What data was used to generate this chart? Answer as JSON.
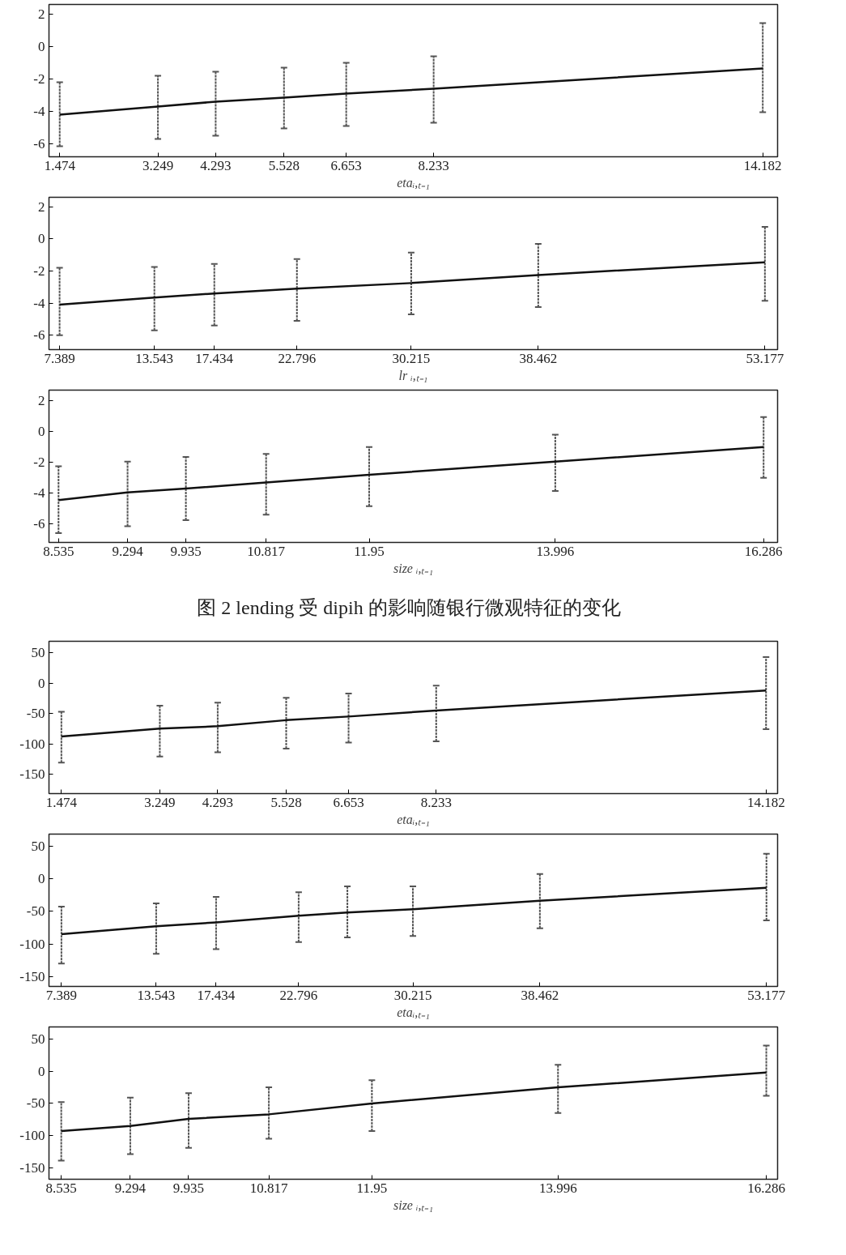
{
  "chart_data": [
    {
      "type": "line",
      "xlabel": "etaᵢ,ₜ₋₁",
      "x": [
        1.474,
        3.249,
        4.293,
        5.528,
        6.653,
        8.233,
        14.182
      ],
      "values": [
        -4.2,
        -3.7,
        -3.4,
        -3.15,
        -2.9,
        -2.6,
        -1.35
      ],
      "errors": [
        [
          -6.15,
          -2.2
        ],
        [
          -5.7,
          -1.8
        ],
        [
          -5.5,
          -1.55
        ],
        [
          -5.05,
          -1.3
        ],
        [
          -4.9,
          -1.0
        ],
        [
          -4.7,
          -0.6
        ],
        [
          -4.05,
          1.45
        ]
      ],
      "color": "#111111",
      "xlim": [
        1.28,
        14.45
      ],
      "ylim": [
        -6.8,
        2.6
      ],
      "xticks": [
        1.474,
        3.249,
        4.293,
        5.528,
        6.653,
        8.233,
        14.182
      ],
      "yticks": [
        -6,
        -4,
        -2,
        0,
        2
      ]
    },
    {
      "type": "line",
      "xlabel": "lr ᵢ,ₜ₋₁",
      "x": [
        7.389,
        13.543,
        17.434,
        22.796,
        30.215,
        38.462,
        53.177
      ],
      "values": [
        -4.1,
        -3.65,
        -3.4,
        -3.1,
        -2.75,
        -2.25,
        -1.45
      ],
      "errors": [
        [
          -6.0,
          -1.8
        ],
        [
          -5.7,
          -1.75
        ],
        [
          -5.4,
          -1.55
        ],
        [
          -5.1,
          -1.25
        ],
        [
          -4.7,
          -0.85
        ],
        [
          -4.25,
          -0.3
        ],
        [
          -3.85,
          0.75
        ]
      ],
      "color": "#111111",
      "xlim": [
        6.7,
        54.0
      ],
      "ylim": [
        -6.9,
        2.6
      ],
      "xticks": [
        7.389,
        13.543,
        17.434,
        22.796,
        30.215,
        38.462,
        53.177
      ],
      "yticks": [
        -6,
        -4,
        -2,
        0,
        2
      ]
    },
    {
      "type": "line",
      "xlabel": "size ᵢ,ₜ₋₁",
      "x": [
        8.535,
        9.294,
        9.935,
        10.817,
        11.95,
        13.996,
        16.286
      ],
      "values": [
        -4.45,
        -3.95,
        -3.7,
        -3.3,
        -2.8,
        -1.95,
        -1.0
      ],
      "errors": [
        [
          -6.6,
          -2.25
        ],
        [
          -6.15,
          -1.95
        ],
        [
          -5.75,
          -1.65
        ],
        [
          -5.4,
          -1.45
        ],
        [
          -4.85,
          -1.0
        ],
        [
          -3.85,
          -0.2
        ],
        [
          -3.0,
          0.95
        ]
      ],
      "color": "#111111",
      "xlim": [
        8.43,
        16.44
      ],
      "ylim": [
        -7.2,
        2.7
      ],
      "xticks": [
        8.535,
        9.294,
        9.935,
        10.817,
        11.95,
        13.996,
        16.286
      ],
      "yticks": [
        -6,
        -4,
        -2,
        0,
        2
      ],
      "annotations": [
        "图 2    lending 受 dipih 的影响随银行微观特征的变化"
      ]
    },
    {
      "type": "line",
      "xlabel": "etaᵢ,ₜ₋₁",
      "x": [
        1.474,
        3.249,
        4.293,
        5.528,
        6.653,
        8.233,
        14.182
      ],
      "values": [
        -88,
        -75,
        -71,
        -61,
        -55,
        -45,
        -12
      ],
      "errors": [
        [
          -131,
          -47
        ],
        [
          -121,
          -37
        ],
        [
          -114,
          -32
        ],
        [
          -108,
          -24
        ],
        [
          -98,
          -17
        ],
        [
          -96,
          -4
        ],
        [
          -76,
          43
        ]
      ],
      "color": "#111111",
      "xlim": [
        1.25,
        14.39
      ],
      "ylim": [
        -182,
        69
      ],
      "xticks": [
        1.474,
        3.249,
        4.293,
        5.528,
        6.653,
        8.233,
        14.182
      ],
      "yticks": [
        -150,
        -100,
        -50,
        0,
        50
      ]
    },
    {
      "type": "line",
      "xlabel": "etaᵢ,ₜ₋₁",
      "x": [
        7.389,
        13.543,
        17.434,
        22.796,
        25.96,
        30.215,
        38.462,
        53.177
      ],
      "values": [
        -85,
        -73,
        -67,
        -57,
        -52,
        -47,
        -34,
        -14
      ],
      "errors": [
        [
          -130,
          -43
        ],
        [
          -115,
          -38
        ],
        [
          -108,
          -28
        ],
        [
          -97,
          -21
        ],
        [
          -90,
          -12
        ],
        [
          -88,
          -12
        ],
        [
          -76,
          7
        ],
        [
          -64,
          38
        ]
      ],
      "color": "#111111",
      "xlim": [
        6.58,
        53.9
      ],
      "ylim": [
        -165,
        68
      ],
      "xticks": [
        7.389,
        13.543,
        17.434,
        22.796,
        30.215,
        38.462,
        53.177
      ],
      "yticks": [
        -150,
        -100,
        -50,
        0,
        50
      ]
    },
    {
      "type": "line",
      "xlabel": "size ᵢ,ₜ₋₁",
      "x": [
        8.535,
        9.294,
        9.935,
        10.817,
        11.95,
        13.996,
        16.286
      ],
      "values": [
        -93,
        -85,
        -74,
        -67,
        -50,
        -25,
        -2
      ],
      "errors": [
        [
          -139,
          -48
        ],
        [
          -129,
          -41
        ],
        [
          -119,
          -34
        ],
        [
          -105,
          -25
        ],
        [
          -93,
          -14
        ],
        [
          -65,
          10
        ],
        [
          -38,
          40
        ]
      ],
      "color": "#111111",
      "xlim": [
        8.4,
        16.41
      ],
      "ylim": [
        -168,
        69
      ],
      "xticks": [
        8.535,
        9.294,
        9.935,
        10.817,
        11.95,
        13.996,
        16.286
      ],
      "yticks": [
        -150,
        -100,
        -50,
        0,
        50
      ]
    }
  ]
}
